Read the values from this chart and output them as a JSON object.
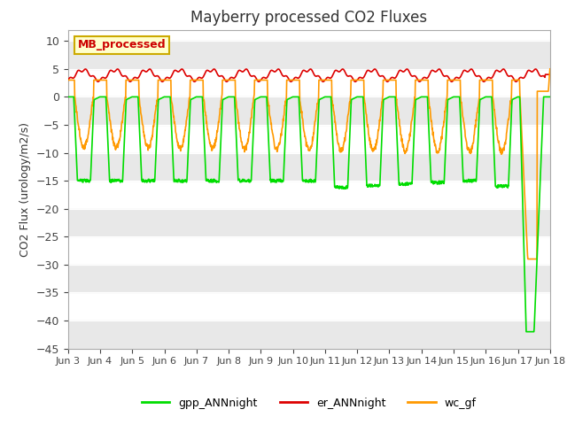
{
  "title": "Mayberry processed CO2 Fluxes",
  "ylabel": "CO2 Flux (urology/m2/s)",
  "xlabels": [
    "Jun 3",
    "Jun 4",
    "Jun 5",
    "Jun 6",
    "Jun 7",
    "Jun 8",
    "Jun 9",
    "Jun 10",
    "Jun 11",
    "Jun 12",
    "Jun 13",
    "Jun 14",
    "Jun 15",
    "Jun 16",
    "Jun 17",
    "Jun 18"
  ],
  "ylim": [
    -45,
    12
  ],
  "yticks": [
    10,
    5,
    0,
    -5,
    -10,
    -15,
    -20,
    -25,
    -30,
    -35,
    -40,
    -45
  ],
  "colors": {
    "gpp": "#00dd00",
    "er": "#dd0000",
    "wc": "#ff9900"
  },
  "legend_label": "MB_processed",
  "legend_bg": "#ffffcc",
  "legend_border": "#ccaa00",
  "fig_bg": "#ffffff",
  "plot_bg": "#ffffff",
  "band_color": "#e8e8e8",
  "n_days": 15,
  "pts_per_day": 96
}
